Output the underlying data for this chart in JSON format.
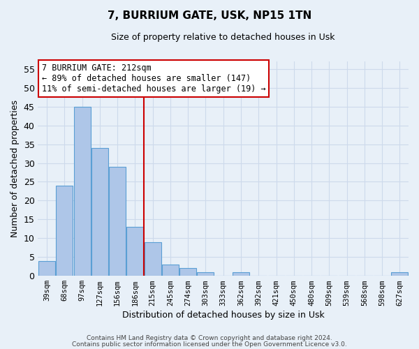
{
  "title": "7, BURRIUM GATE, USK, NP15 1TN",
  "subtitle": "Size of property relative to detached houses in Usk",
  "xlabel": "Distribution of detached houses by size in Usk",
  "ylabel": "Number of detached properties",
  "bar_labels": [
    "39sqm",
    "68sqm",
    "97sqm",
    "127sqm",
    "156sqm",
    "186sqm",
    "215sqm",
    "245sqm",
    "274sqm",
    "303sqm",
    "333sqm",
    "362sqm",
    "392sqm",
    "421sqm",
    "450sqm",
    "480sqm",
    "509sqm",
    "539sqm",
    "568sqm",
    "598sqm",
    "627sqm"
  ],
  "bar_values": [
    4,
    24,
    45,
    34,
    29,
    13,
    9,
    3,
    2,
    1,
    0,
    1,
    0,
    0,
    0,
    0,
    0,
    0,
    0,
    0,
    1
  ],
  "bar_color": "#aec6e8",
  "bar_edge_color": "#5a9fd4",
  "vline_color": "#cc0000",
  "vline_idx": 6,
  "ylim_max": 57,
  "yticks": [
    0,
    5,
    10,
    15,
    20,
    25,
    30,
    35,
    40,
    45,
    50,
    55
  ],
  "annotation_line0": "7 BURRIUM GATE: 212sqm",
  "annotation_line1": "← 89% of detached houses are smaller (147)",
  "annotation_line2": "11% of semi-detached houses are larger (19) →",
  "annotation_box_color": "#ffffff",
  "annotation_box_edge": "#cc0000",
  "grid_color": "#cddaeb",
  "background_color": "#e8f0f8",
  "footer1": "Contains HM Land Registry data © Crown copyright and database right 2024.",
  "footer2": "Contains public sector information licensed under the Open Government Licence v3.0."
}
